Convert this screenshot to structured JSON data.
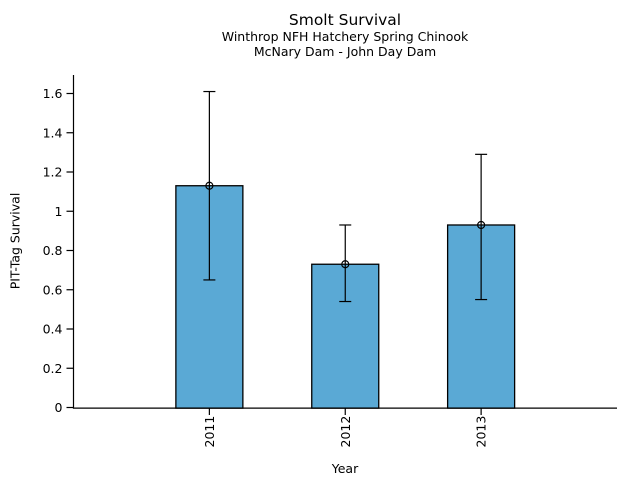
{
  "chart_data": {
    "type": "bar",
    "title": "Smolt Survival",
    "subtitle1": "Winthrop NFH Hatchery Spring Chinook",
    "subtitle2": "McNary Dam - John Day Dam",
    "xlabel": "Year",
    "ylabel": "PIT-Tag Survival",
    "categories": [
      "2011",
      "2012",
      "2013"
    ],
    "values": [
      1.13,
      0.73,
      0.93
    ],
    "error_low": [
      0.65,
      0.54,
      0.55
    ],
    "error_high": [
      1.61,
      0.93,
      1.29
    ],
    "ylim": [
      0,
      1.6
    ],
    "yticks": [
      "0",
      "0.2",
      "0.4",
      "0.6",
      "0.8",
      "1",
      "1.2",
      "1.4",
      "1.6"
    ],
    "bar_color": "#5AA9D5",
    "bar_border_color": "#000000",
    "axis_color": "#000000",
    "marker": "open-circle",
    "grid": false,
    "legend": false
  }
}
